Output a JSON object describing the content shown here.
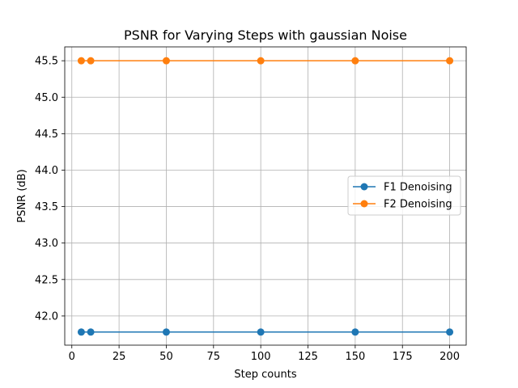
{
  "chart_data": {
    "type": "line",
    "title": "PSNR for Varying Steps with gaussian Noise",
    "xlabel": "Step counts",
    "ylabel": "PSNR (dB)",
    "x": [
      5,
      10,
      50,
      100,
      150,
      200
    ],
    "xlim": [
      -3.75,
      208.75
    ],
    "ylim": [
      41.6,
      45.69
    ],
    "xticks": [
      0,
      25,
      50,
      75,
      100,
      125,
      150,
      175,
      200
    ],
    "xtick_labels": [
      "0",
      "25",
      "50",
      "75",
      "100",
      "125",
      "150",
      "175",
      "200"
    ],
    "yticks": [
      42.0,
      42.5,
      43.0,
      43.5,
      44.0,
      44.5,
      45.0,
      45.5
    ],
    "ytick_labels": [
      "42.0",
      "42.5",
      "43.0",
      "43.5",
      "44.0",
      "44.5",
      "45.0",
      "45.5"
    ],
    "grid": true,
    "legend_position": "center-right",
    "series": [
      {
        "name": "F1 Denoising",
        "color": "#1f77b4",
        "marker": "circle",
        "values": [
          41.78,
          41.78,
          41.78,
          41.78,
          41.78,
          41.78
        ]
      },
      {
        "name": "F2 Denoising",
        "color": "#ff7f0e",
        "marker": "circle",
        "values": [
          45.5,
          45.5,
          45.5,
          45.5,
          45.5,
          45.5
        ]
      }
    ]
  }
}
